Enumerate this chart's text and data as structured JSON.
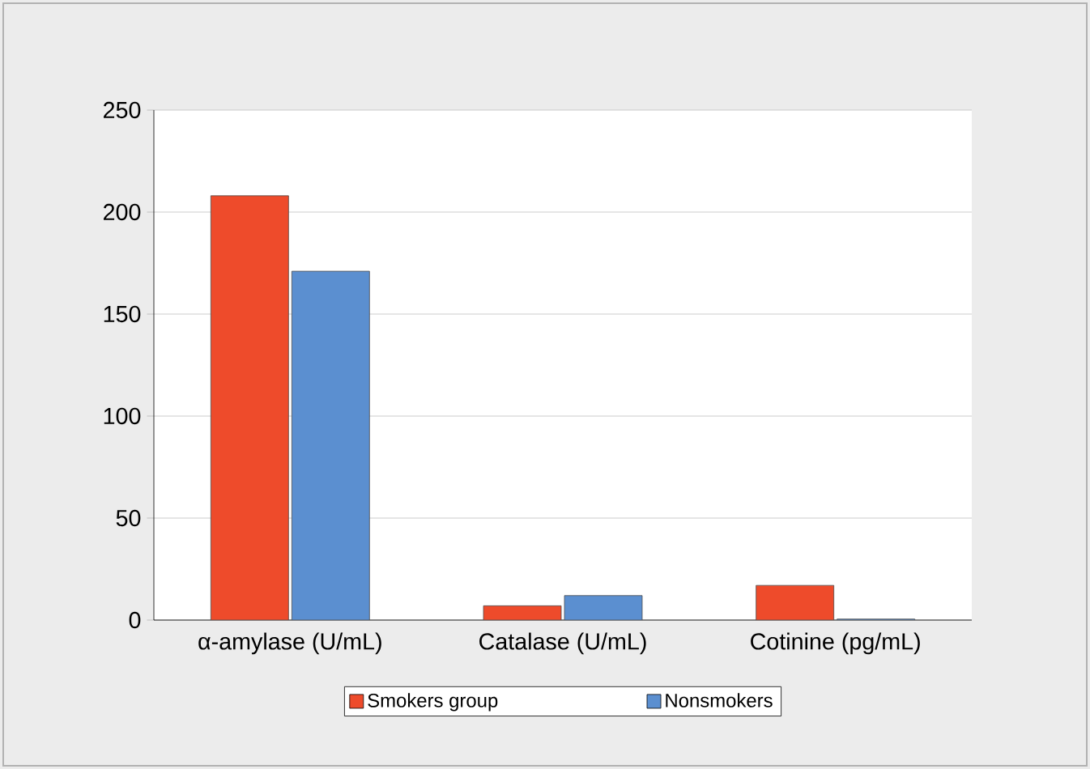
{
  "chart_data": {
    "type": "bar",
    "categories": [
      "α-amylase (U/mL)",
      "Catalase (U/mL)",
      "Cotinine (pg/mL)"
    ],
    "series": [
      {
        "name": "Smokers group",
        "color": "#ee4b2b",
        "values": [
          208,
          7,
          17
        ]
      },
      {
        "name": "Nonsmokers",
        "color": "#5b8fd0",
        "values": [
          171,
          12,
          0.5
        ]
      }
    ],
    "ylim": [
      0,
      250
    ],
    "yticks": [
      0,
      50,
      100,
      150,
      200,
      250
    ],
    "grid": "y",
    "legend": "bottom"
  }
}
